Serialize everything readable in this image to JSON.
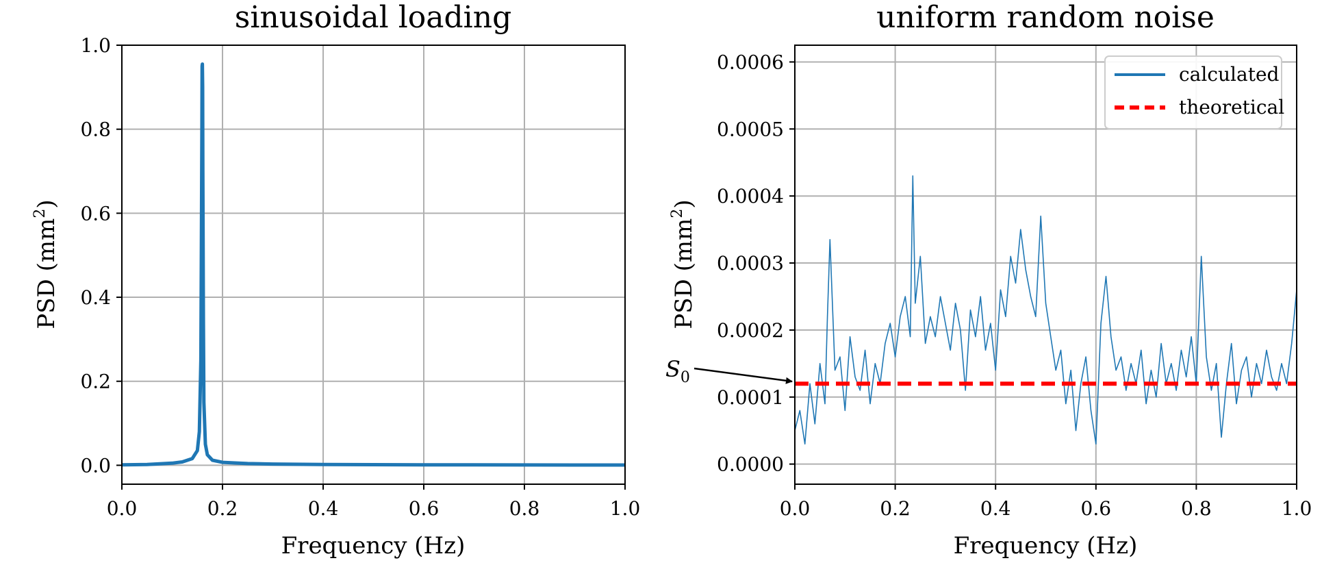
{
  "chart_data": [
    {
      "type": "line",
      "title": "sinusoidal loading",
      "xlabel": "Frequency (Hz)",
      "ylabel": "PSD (mm",
      "ylabel_sup": "2",
      "ylabel_close": ")",
      "xlim": [
        0.0,
        1.0
      ],
      "ylim": [
        -0.045,
        1.0
      ],
      "xticks": [
        "0.0",
        "0.2",
        "0.4",
        "0.6",
        "0.8",
        "1.0"
      ],
      "yticks": [
        "0.0",
        "0.2",
        "0.4",
        "0.6",
        "0.8",
        "1.0"
      ],
      "grid": true,
      "series": [
        {
          "color": "#1f77b4",
          "x": [
            0.0,
            0.05,
            0.1,
            0.12,
            0.14,
            0.15,
            0.154,
            0.157,
            0.158,
            0.159,
            0.1595,
            0.16,
            0.1605,
            0.161,
            0.162,
            0.163,
            0.166,
            0.17,
            0.18,
            0.2,
            0.25,
            0.3,
            0.4,
            0.5,
            0.6,
            0.7,
            0.8,
            0.9,
            1.0
          ],
          "y": [
            0.001,
            0.002,
            0.005,
            0.008,
            0.016,
            0.035,
            0.08,
            0.25,
            0.5,
            0.8,
            0.95,
            0.955,
            0.9,
            0.7,
            0.35,
            0.15,
            0.05,
            0.025,
            0.012,
            0.007,
            0.004,
            0.003,
            0.002,
            0.0015,
            0.001,
            0.001,
            0.0008,
            0.0007,
            0.0006
          ]
        }
      ]
    },
    {
      "type": "line",
      "title": "uniform random noise",
      "xlabel": "Frequency (Hz)",
      "ylabel": "PSD (mm",
      "ylabel_sup": "2",
      "ylabel_close": ")",
      "xlim": [
        0.0,
        1.0
      ],
      "ylim": [
        -3e-05,
        0.000625
      ],
      "xticks": [
        "0.0",
        "0.2",
        "0.4",
        "0.6",
        "0.8",
        "1.0"
      ],
      "yticks": [
        "0.0000",
        "0.0001",
        "0.0002",
        "0.0003",
        "0.0004",
        "0.0005",
        "0.0006"
      ],
      "grid": true,
      "legend": "top-right",
      "annotation": {
        "symbol": "S",
        "subscript": "0",
        "points_to_y": 0.00012
      },
      "series": [
        {
          "name": "calculated",
          "color": "#1f77b4",
          "style": "solid",
          "x": [
            0.0,
            0.01,
            0.02,
            0.03,
            0.04,
            0.05,
            0.06,
            0.065,
            0.07,
            0.08,
            0.09,
            0.1,
            0.11,
            0.12,
            0.13,
            0.14,
            0.15,
            0.16,
            0.17,
            0.18,
            0.19,
            0.2,
            0.21,
            0.22,
            0.23,
            0.235,
            0.24,
            0.25,
            0.26,
            0.27,
            0.28,
            0.29,
            0.3,
            0.31,
            0.32,
            0.33,
            0.34,
            0.35,
            0.36,
            0.37,
            0.38,
            0.39,
            0.4,
            0.41,
            0.42,
            0.43,
            0.44,
            0.45,
            0.46,
            0.47,
            0.48,
            0.49,
            0.5,
            0.51,
            0.52,
            0.53,
            0.54,
            0.55,
            0.56,
            0.57,
            0.58,
            0.59,
            0.6,
            0.61,
            0.62,
            0.63,
            0.64,
            0.65,
            0.66,
            0.67,
            0.68,
            0.69,
            0.7,
            0.71,
            0.72,
            0.73,
            0.74,
            0.75,
            0.76,
            0.77,
            0.78,
            0.79,
            0.8,
            0.81,
            0.82,
            0.83,
            0.84,
            0.85,
            0.86,
            0.87,
            0.88,
            0.89,
            0.9,
            0.91,
            0.92,
            0.93,
            0.94,
            0.95,
            0.96,
            0.97,
            0.98,
            0.99,
            1.0
          ],
          "y": [
            5e-05,
            8e-05,
            3e-05,
            0.00012,
            6e-05,
            0.00015,
            9e-05,
            0.00022,
            0.000335,
            0.00014,
            0.00016,
            8e-05,
            0.00019,
            0.00013,
            0.00011,
            0.00017,
            9e-05,
            0.00015,
            0.00012,
            0.00018,
            0.00021,
            0.00016,
            0.00022,
            0.00025,
            0.00019,
            0.00043,
            0.00024,
            0.00031,
            0.00018,
            0.00022,
            0.00019,
            0.00025,
            0.00021,
            0.00017,
            0.00024,
            0.0002,
            0.00011,
            0.00023,
            0.00019,
            0.00025,
            0.00017,
            0.00021,
            0.00014,
            0.00026,
            0.00022,
            0.00031,
            0.00027,
            0.00035,
            0.00029,
            0.00025,
            0.00022,
            0.00037,
            0.00024,
            0.00019,
            0.00014,
            0.00017,
            9e-05,
            0.00014,
            5e-05,
            0.00012,
            0.00016,
            8e-05,
            3e-05,
            0.00021,
            0.00028,
            0.00019,
            0.00014,
            0.00016,
            0.00011,
            0.00015,
            0.00012,
            0.00017,
            9e-05,
            0.00014,
            0.0001,
            0.00018,
            0.00012,
            0.00015,
            0.00011,
            0.00017,
            0.00013,
            0.00019,
            0.00012,
            0.00031,
            0.00016,
            0.00011,
            0.00015,
            4e-05,
            0.00012,
            0.00018,
            9e-05,
            0.00014,
            0.00016,
            0.0001,
            0.00015,
            0.00012,
            0.00017,
            0.00013,
            0.00011,
            0.00015,
            0.00012,
            0.00018,
            0.00026
          ]
        },
        {
          "name": "theoretical",
          "color": "#ff0000",
          "style": "dashed",
          "x": [
            0.0,
            1.0
          ],
          "y": [
            0.00012,
            0.00012
          ]
        }
      ]
    }
  ]
}
